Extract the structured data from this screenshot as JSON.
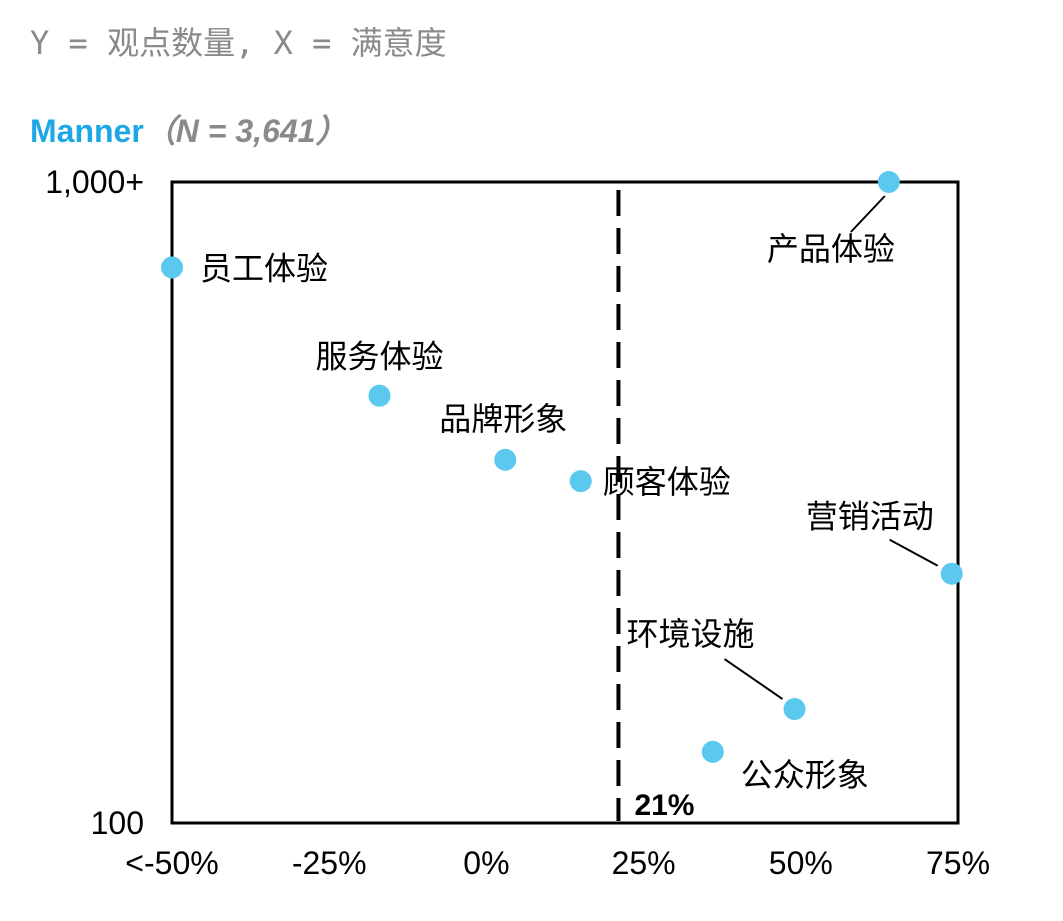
{
  "subtitle": "Y = 观点数量, X = 满意度",
  "title": {
    "brand": "Manner",
    "sample": "（N = 3,641）"
  },
  "colors": {
    "point": "#5bc8f0",
    "brand": "#1ea7e4",
    "muted": "#8a8a8a",
    "axis": "#000000"
  },
  "chart_data": {
    "type": "scatter",
    "xlabel": "",
    "ylabel": "",
    "xlim": [
      -0.5,
      0.75
    ],
    "ylim": [
      100,
      1000
    ],
    "x_ticks": [
      {
        "value": -0.5,
        "label": "<-50%"
      },
      {
        "value": -0.25,
        "label": "-25%"
      },
      {
        "value": 0,
        "label": "0%"
      },
      {
        "value": 0.25,
        "label": "25%"
      },
      {
        "value": 0.5,
        "label": "50%"
      },
      {
        "value": 0.75,
        "label": "75%"
      }
    ],
    "y_ticks": [
      {
        "value": 100,
        "label": "100"
      },
      {
        "value": 1000,
        "label": "1,000+"
      }
    ],
    "reference_line": {
      "x": 0.21,
      "label": "21%",
      "style": "dashed"
    },
    "points": [
      {
        "name": "员工体验",
        "x": -0.5,
        "y": 880
      },
      {
        "name": "产品体验",
        "x": 0.64,
        "y": 1000
      },
      {
        "name": "服务体验",
        "x": -0.17,
        "y": 700
      },
      {
        "name": "品牌形象",
        "x": 0.03,
        "y": 610
      },
      {
        "name": "顾客体验",
        "x": 0.15,
        "y": 580
      },
      {
        "name": "营销活动",
        "x": 0.74,
        "y": 450
      },
      {
        "name": "环境设施",
        "x": 0.49,
        "y": 260
      },
      {
        "name": "公众形象",
        "x": 0.36,
        "y": 200
      }
    ]
  }
}
